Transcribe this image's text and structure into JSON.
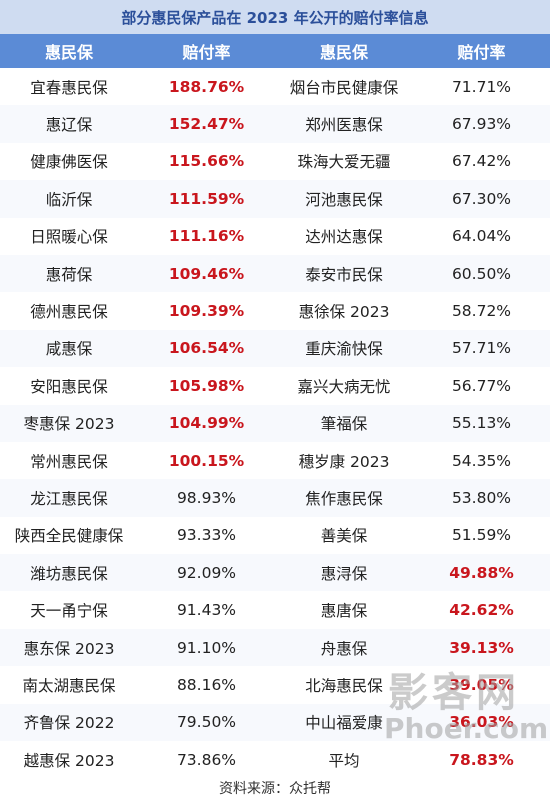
{
  "title": "部分惠民保产品在 2023 年公开的赔付率信息",
  "headers": [
    "惠民保",
    "赔付率",
    "惠民保",
    "赔付率"
  ],
  "rows": [
    {
      "l_name": "宜春惠民保",
      "l_rate": "188.76%",
      "r_name": "烟台市民健康保",
      "r_rate": "71.71%"
    },
    {
      "l_name": "惠辽保",
      "l_rate": "152.47%",
      "r_name": "郑州医惠保",
      "r_rate": "67.93%"
    },
    {
      "l_name": "健康佛医保",
      "l_rate": "115.66%",
      "r_name": "珠海大爱无疆",
      "r_rate": "67.42%"
    },
    {
      "l_name": "临沂保",
      "l_rate": "111.59%",
      "r_name": "河池惠民保",
      "r_rate": "67.30%"
    },
    {
      "l_name": "日照暖心保",
      "l_rate": "111.16%",
      "r_name": "达州达惠保",
      "r_rate": "64.04%"
    },
    {
      "l_name": "惠荷保",
      "l_rate": "109.46%",
      "r_name": "泰安市民保",
      "r_rate": "60.50%"
    },
    {
      "l_name": "德州惠民保",
      "l_rate": "109.39%",
      "r_name": "惠徐保 2023",
      "r_rate": "58.72%"
    },
    {
      "l_name": "咸惠保",
      "l_rate": "106.54%",
      "r_name": "重庆渝快保",
      "r_rate": "57.71%"
    },
    {
      "l_name": "安阳惠民保",
      "l_rate": "105.98%",
      "r_name": "嘉兴大病无忧",
      "r_rate": "56.77%"
    },
    {
      "l_name": "枣惠保 2023",
      "l_rate": "104.99%",
      "r_name": "筆福保",
      "r_rate": "55.13%"
    },
    {
      "l_name": "常州惠民保",
      "l_rate": "100.15%",
      "r_name": "穗岁康 2023",
      "r_rate": "54.35%"
    },
    {
      "l_name": "龙江惠民保",
      "l_rate": "98.93%",
      "r_name": "焦作惠民保",
      "r_rate": "53.80%"
    },
    {
      "l_name": "陕西全民健康保",
      "l_rate": "93.33%",
      "r_name": "善美保",
      "r_rate": "51.59%"
    },
    {
      "l_name": "潍坊惠民保",
      "l_rate": "92.09%",
      "r_name": "惠浔保",
      "r_rate": "49.88%"
    },
    {
      "l_name": "天一甬宁保",
      "l_rate": "91.43%",
      "r_name": "惠唐保",
      "r_rate": "42.62%"
    },
    {
      "l_name": "惠东保 2023",
      "l_rate": "91.10%",
      "r_name": "舟惠保",
      "r_rate": "39.13%"
    },
    {
      "l_name": "南太湖惠民保",
      "l_rate": "88.16%",
      "r_name": "北海惠民保",
      "r_rate": "39.05%"
    },
    {
      "l_name": "齐鲁保 2022",
      "l_rate": "79.50%",
      "r_name": "中山福爱康",
      "r_rate": "36.03%"
    },
    {
      "l_name": "越惠保 2023",
      "l_rate": "73.86%",
      "r_name": "平均",
      "r_rate": "78.83%"
    }
  ],
  "highlight": {
    "left_red_rows": 11,
    "right_red_from_row": 13,
    "red_color": "#c9161d"
  },
  "source": "资料来源：众托帮",
  "watermark": {
    "line1": "影客网",
    "line2": "Phoer.com"
  }
}
